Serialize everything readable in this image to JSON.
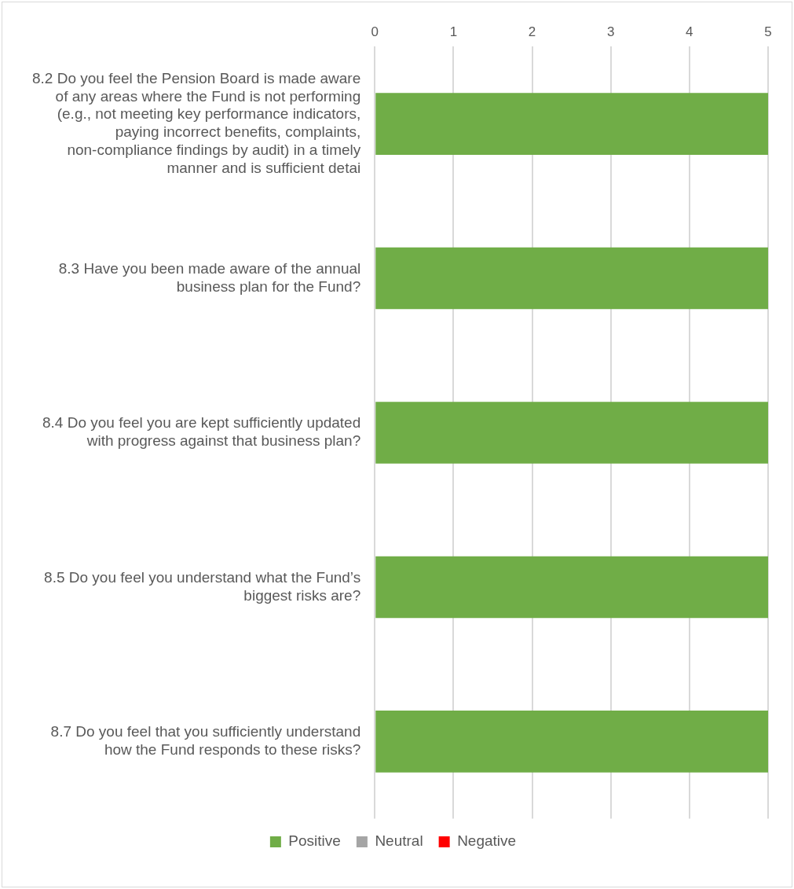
{
  "chart_data": {
    "type": "bar",
    "orientation": "horizontal",
    "stacked": true,
    "categories": [
      "8.2 Do you feel the Pension Board is made aware of any areas where the Fund is not performing (e.g., not meeting key performance indicators, paying incorrect benefits, complaints, non-compliance findings by audit) in a timely manner and is sufficient detai",
      "8.3 Have you been made aware of the annual business plan for the Fund?",
      "8.4 Do you feel you are kept sufficiently updated with progress against that business plan?",
      "8.5 Do you feel you understand what the Fund’s biggest risks are?",
      "8.7 Do you feel that you sufficiently understand how the Fund responds to these risks?"
    ],
    "series": [
      {
        "name": "Positive",
        "color": "#70ad47",
        "values": [
          5,
          5,
          5,
          5,
          5
        ]
      },
      {
        "name": "Neutral",
        "color": "#a5a5a5",
        "values": [
          0,
          0,
          0,
          0,
          0
        ]
      },
      {
        "name": "Negative",
        "color": "#ff0000",
        "values": [
          0,
          0,
          0,
          0,
          0
        ]
      }
    ],
    "xlim": [
      0,
      5
    ],
    "xticks": [
      0,
      1,
      2,
      3,
      4,
      5
    ],
    "grid": "x",
    "legend": "bottom"
  }
}
